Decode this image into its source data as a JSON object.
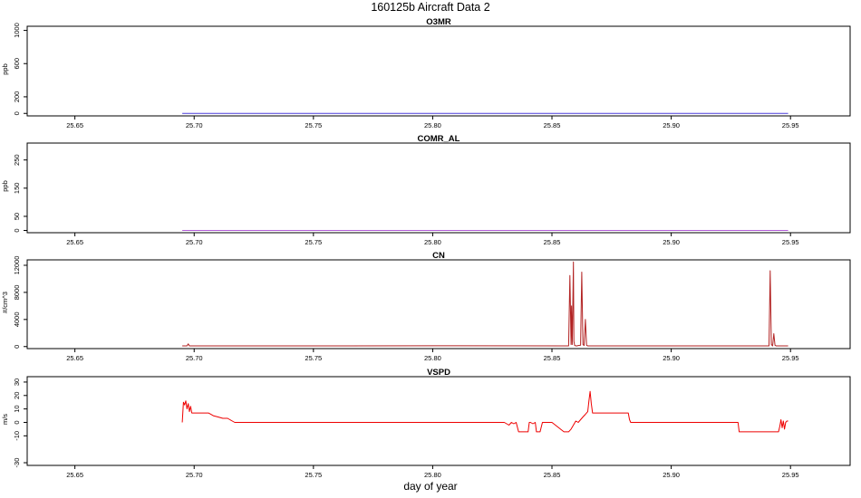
{
  "page": {
    "title": "160125b   Aircraft Data 2",
    "xlabel": "day of year"
  },
  "chart_data": [
    {
      "type": "line",
      "title": "O3MR",
      "ylabel": "ppb",
      "xlim": [
        25.63,
        25.975
      ],
      "ylim": [
        -30,
        1050
      ],
      "xticks": [
        25.65,
        25.7,
        25.75,
        25.8,
        25.85,
        25.9,
        25.95
      ],
      "xtick_labels": [
        "25.65",
        "25.70",
        "25.75",
        "25.80",
        "25.85",
        "25.90",
        "25.95"
      ],
      "yticks": [
        0,
        200,
        600,
        1000
      ],
      "ytick_labels": [
        "0",
        "200",
        "600",
        "1000"
      ],
      "series": [
        {
          "color": "#4b3ddc",
          "x": [
            25.695,
            25.949
          ],
          "y": [
            0,
            0
          ]
        }
      ]
    },
    {
      "type": "line",
      "title": "COMR_AL",
      "ylabel": "ppb",
      "xlim": [
        25.63,
        25.975
      ],
      "ylim": [
        -8,
        310
      ],
      "xticks": [
        25.65,
        25.7,
        25.75,
        25.8,
        25.85,
        25.9,
        25.95
      ],
      "xtick_labels": [
        "25.65",
        "25.70",
        "25.75",
        "25.80",
        "25.85",
        "25.90",
        "25.95"
      ],
      "yticks": [
        0,
        50,
        150,
        250
      ],
      "ytick_labels": [
        "0",
        "50",
        "150",
        "250"
      ],
      "series": [
        {
          "color": "#b05cd6",
          "x": [
            25.695,
            25.949
          ],
          "y": [
            0,
            0
          ]
        }
      ]
    },
    {
      "type": "line",
      "title": "CN",
      "ylabel": "#/cm^3",
      "xlim": [
        25.63,
        25.975
      ],
      "ylim": [
        -300,
        12800
      ],
      "xticks": [
        25.65,
        25.7,
        25.75,
        25.8,
        25.85,
        25.9,
        25.95
      ],
      "xtick_labels": [
        "25.65",
        "25.70",
        "25.75",
        "25.80",
        "25.85",
        "25.90",
        "25.95"
      ],
      "yticks": [
        0,
        4000,
        8000,
        12000
      ],
      "ytick_labels": [
        "0",
        "4000",
        "8000",
        "12000"
      ],
      "series": [
        {
          "color": "#b22222",
          "x": [
            25.695,
            25.697,
            25.6975,
            25.698,
            25.75,
            25.8,
            25.857,
            25.8575,
            25.858,
            25.8582,
            25.8585,
            25.859,
            25.8592,
            25.8595,
            25.86,
            25.8605,
            25.861,
            25.862,
            25.8625,
            25.863,
            25.8635,
            25.864,
            25.8645,
            25.865,
            25.87,
            25.9,
            25.94,
            25.941,
            25.9415,
            25.942,
            25.9425,
            25.943,
            25.9435,
            25.944,
            25.949
          ],
          "y": [
            100,
            100,
            400,
            100,
            100,
            120,
            100,
            10500,
            300,
            6000,
            300,
            12500,
            800,
            200,
            100,
            100,
            150,
            200,
            11000,
            300,
            150,
            4000,
            200,
            100,
            100,
            100,
            100,
            100,
            11200,
            300,
            100,
            1900,
            200,
            100,
            100
          ]
        }
      ]
    },
    {
      "type": "line",
      "title": "VSPD",
      "ylabel": "m/s",
      "xlim": [
        25.63,
        25.975
      ],
      "ylim": [
        -32,
        34
      ],
      "xticks": [
        25.65,
        25.7,
        25.75,
        25.8,
        25.85,
        25.9,
        25.95
      ],
      "xtick_labels": [
        "25.65",
        "25.70",
        "25.75",
        "25.80",
        "25.85",
        "25.90",
        "25.95"
      ],
      "yticks": [
        -30,
        -10,
        0,
        10,
        20,
        30
      ],
      "ytick_labels": [
        "-30",
        "-10",
        "0",
        "10",
        "20",
        "30"
      ],
      "series": [
        {
          "color": "#ee0000",
          "x": [
            25.695,
            25.6955,
            25.696,
            25.6965,
            25.697,
            25.6975,
            25.698,
            25.6985,
            25.699,
            25.7,
            25.705,
            25.706,
            25.707,
            25.708,
            25.71,
            25.712,
            25.714,
            25.715,
            25.716,
            25.717,
            25.72,
            25.75,
            25.78,
            25.8,
            25.82,
            25.83,
            25.831,
            25.832,
            25.833,
            25.834,
            25.835,
            25.836,
            25.8365,
            25.84,
            25.8405,
            25.841,
            25.842,
            25.843,
            25.8435,
            25.844,
            25.845,
            25.846,
            25.8465,
            25.85,
            25.855,
            25.856,
            25.857,
            25.858,
            25.859,
            25.86,
            25.861,
            25.862,
            25.863,
            25.864,
            25.865,
            25.8655,
            25.866,
            25.8665,
            25.867,
            25.87,
            25.875,
            25.88,
            25.882,
            25.8825,
            25.883,
            25.9,
            25.92,
            25.928,
            25.9285,
            25.929,
            25.935,
            25.94,
            25.944,
            25.945,
            25.9455,
            25.946,
            25.9465,
            25.947,
            25.9475,
            25.948,
            25.9485,
            25.949
          ],
          "y": [
            0,
            15,
            13,
            16,
            10,
            14,
            8,
            12,
            7,
            7,
            7,
            7,
            6,
            5,
            4,
            3,
            3,
            2,
            1,
            0,
            0,
            0,
            0,
            0,
            0,
            0,
            -1,
            -2,
            0,
            -1,
            0,
            -7,
            -7,
            -7,
            0,
            0,
            -1,
            0,
            -7,
            -7,
            -7,
            0,
            0,
            0,
            -7,
            -7,
            -7,
            -5,
            -2,
            1,
            0,
            2,
            4,
            6,
            8,
            16,
            23,
            14,
            7,
            7,
            7,
            7,
            7,
            2,
            0,
            0,
            0,
            0,
            -7,
            -7,
            -7,
            -7,
            -7,
            -7,
            -3,
            2,
            -4,
            1,
            -5,
            0,
            1,
            1
          ]
        }
      ]
    }
  ]
}
